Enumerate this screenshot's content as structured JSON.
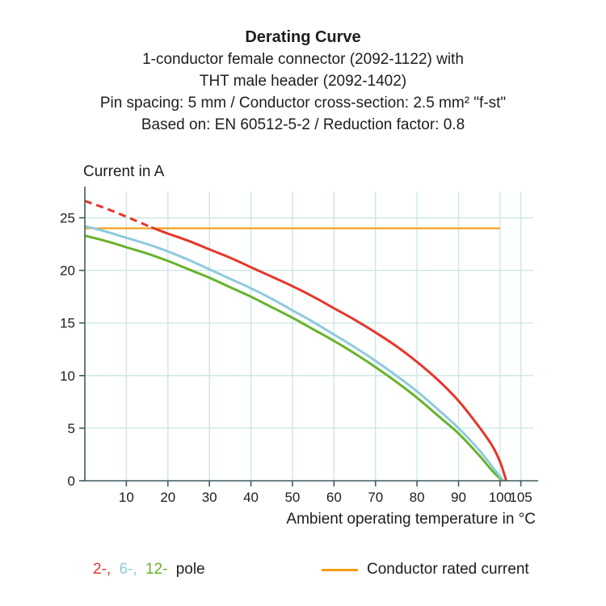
{
  "title": {
    "heading": "Derating Curve",
    "lines": [
      "1-conductor female connector (2092-1122) with",
      "THT male header (2092-1402)",
      "Pin spacing: 5 mm / Conductor cross-section: 2.5 mm² \"f-st\"",
      "Based on: EN 60512-5-2 / Reduction factor: 0.8"
    ]
  },
  "chart_data": {
    "type": "line",
    "title": "Derating Curve",
    "ylabel": "Current in A",
    "xlabel": "Ambient operating temperature in °C",
    "xlim": [
      0,
      108
    ],
    "ylim": [
      0,
      27.5
    ],
    "xticks": [
      10,
      20,
      30,
      40,
      50,
      60,
      70,
      80,
      90,
      100,
      105
    ],
    "yticks": [
      0,
      5,
      10,
      15,
      20,
      25
    ],
    "grid": true,
    "series": [
      {
        "name": "2-pole",
        "color_key": "red",
        "dash_until_x": 16,
        "points": [
          [
            0,
            26.6
          ],
          [
            5,
            25.9
          ],
          [
            10,
            25.1
          ],
          [
            16,
            24.1
          ],
          [
            20,
            23.5
          ],
          [
            25,
            22.8
          ],
          [
            30,
            22.0
          ],
          [
            35,
            21.2
          ],
          [
            40,
            20.3
          ],
          [
            45,
            19.4
          ],
          [
            50,
            18.5
          ],
          [
            55,
            17.5
          ],
          [
            60,
            16.4
          ],
          [
            65,
            15.3
          ],
          [
            70,
            14.1
          ],
          [
            75,
            12.8
          ],
          [
            80,
            11.3
          ],
          [
            85,
            9.6
          ],
          [
            90,
            7.6
          ],
          [
            95,
            5.1
          ],
          [
            98,
            3.4
          ],
          [
            100,
            1.8
          ],
          [
            101.5,
            0
          ]
        ]
      },
      {
        "name": "6-pole",
        "color_key": "blue",
        "points": [
          [
            0,
            24.2
          ],
          [
            5,
            23.7
          ],
          [
            10,
            23.1
          ],
          [
            15,
            22.5
          ],
          [
            20,
            21.8
          ],
          [
            25,
            21.0
          ],
          [
            30,
            20.1
          ],
          [
            35,
            19.2
          ],
          [
            40,
            18.3
          ],
          [
            45,
            17.3
          ],
          [
            50,
            16.2
          ],
          [
            55,
            15.1
          ],
          [
            60,
            13.9
          ],
          [
            65,
            12.7
          ],
          [
            70,
            11.4
          ],
          [
            75,
            10.0
          ],
          [
            80,
            8.5
          ],
          [
            85,
            6.8
          ],
          [
            90,
            5.0
          ],
          [
            95,
            2.9
          ],
          [
            98,
            1.4
          ],
          [
            100,
            0.4
          ],
          [
            100.8,
            0
          ]
        ]
      },
      {
        "name": "12-pole",
        "color_key": "green",
        "points": [
          [
            0,
            23.3
          ],
          [
            5,
            22.8
          ],
          [
            10,
            22.2
          ],
          [
            15,
            21.6
          ],
          [
            20,
            20.9
          ],
          [
            25,
            20.1
          ],
          [
            30,
            19.3
          ],
          [
            35,
            18.4
          ],
          [
            40,
            17.5
          ],
          [
            45,
            16.5
          ],
          [
            50,
            15.5
          ],
          [
            55,
            14.4
          ],
          [
            60,
            13.3
          ],
          [
            65,
            12.1
          ],
          [
            70,
            10.8
          ],
          [
            75,
            9.4
          ],
          [
            80,
            7.9
          ],
          [
            85,
            6.2
          ],
          [
            90,
            4.5
          ],
          [
            95,
            2.4
          ],
          [
            98,
            1.0
          ],
          [
            100,
            0.2
          ],
          [
            100.4,
            0
          ]
        ]
      }
    ],
    "rated_current_line": {
      "label": "Conductor rated current",
      "y": 24,
      "x_start": 0,
      "x_end": 100
    }
  },
  "legend": {
    "poles": [
      {
        "label": "2-,",
        "color_key": "red"
      },
      {
        "label": "6-,",
        "color_key": "blue"
      },
      {
        "label": "12-",
        "color_key": "green"
      }
    ],
    "pole_suffix": "pole",
    "rated_label": "Conductor rated current"
  },
  "colors": {
    "red": "#e5372b",
    "blue": "#8fcadd",
    "green": "#67b32c",
    "orange": "#f59c11",
    "grid": "#c9e6e2",
    "axis": "#3e5c5c",
    "text": "#1d1d1b"
  }
}
